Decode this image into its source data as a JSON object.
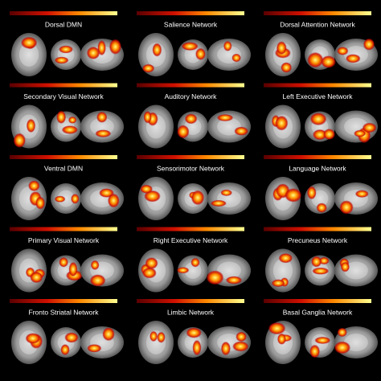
{
  "panels": [
    {
      "title": "Dorsal DMN"
    },
    {
      "title": "Salience Network"
    },
    {
      "title": "Dorsal Attention Network"
    },
    {
      "title": "Secondary Visual Network"
    },
    {
      "title": "Auditory Network"
    },
    {
      "title": "Left Executive Network"
    },
    {
      "title": "Ventral DMN"
    },
    {
      "title": "Sensorimotor Network"
    },
    {
      "title": "Language Network"
    },
    {
      "title": "Primary Visual Network"
    },
    {
      "title": "Right Executive Network"
    },
    {
      "title": "Precuneus Network"
    },
    {
      "title": "Fronto Striatal Network"
    },
    {
      "title": "Limbic Network"
    },
    {
      "title": "Basal Ganglia Network"
    }
  ]
}
